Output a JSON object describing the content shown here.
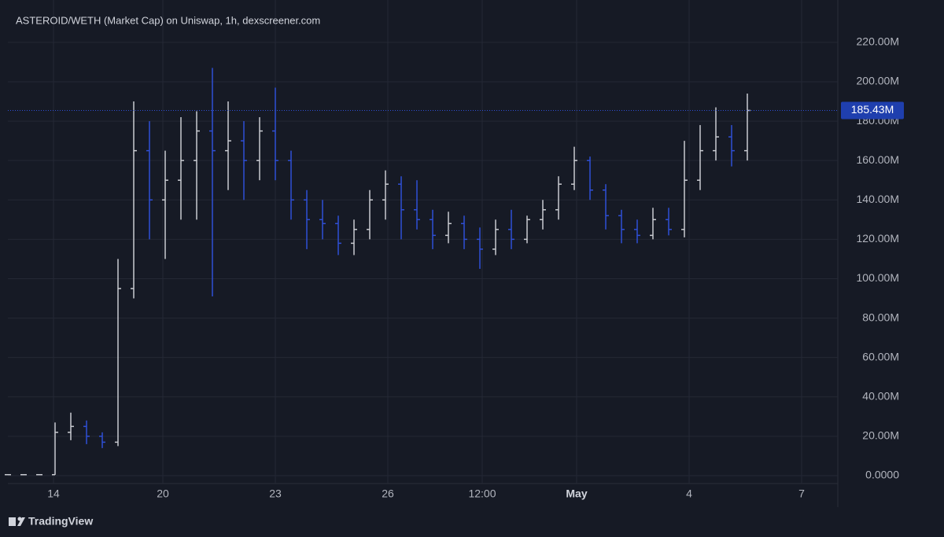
{
  "chart_data": {
    "type": "ohlc",
    "title": "ASTEROID/WETH (Market Cap) on Uniswap, 1h, dexscreener.com",
    "footer": "TradingView",
    "x": [
      0,
      2,
      4,
      6,
      8,
      10,
      12,
      14,
      16,
      18,
      20,
      22,
      24,
      26,
      28,
      30,
      32,
      34,
      36,
      38,
      40,
      42,
      44,
      46,
      48,
      50,
      52,
      54,
      56,
      58,
      60,
      62,
      64,
      66,
      68,
      70,
      72,
      74,
      76,
      78,
      80,
      82,
      84,
      86,
      88,
      90,
      92,
      94
    ],
    "open": [
      0.5,
      0.5,
      0.5,
      0.5,
      22,
      25,
      20,
      17,
      95,
      165,
      140,
      150,
      160,
      175,
      165,
      170,
      160,
      175,
      160,
      140,
      130,
      128,
      118,
      125,
      140,
      148,
      135,
      130,
      122,
      128,
      120,
      115,
      125,
      120,
      130,
      135,
      148,
      160,
      145,
      132,
      125,
      122,
      130,
      125,
      150,
      165,
      172,
      165
    ],
    "high": [
      0.6,
      0.6,
      0.6,
      27,
      32,
      28,
      22,
      110,
      190,
      180,
      165,
      182,
      185,
      207,
      190,
      180,
      182,
      197,
      165,
      145,
      140,
      132,
      130,
      145,
      155,
      152,
      150,
      135,
      134,
      132,
      126,
      130,
      135,
      132,
      140,
      152,
      167,
      162,
      148,
      135,
      130,
      136,
      136,
      170,
      178,
      187,
      178,
      194
    ],
    "low": [
      0.4,
      0.4,
      0.4,
      0.4,
      18,
      16,
      14,
      15,
      90,
      120,
      110,
      130,
      130,
      91,
      145,
      140,
      150,
      150,
      130,
      115,
      120,
      112,
      112,
      120,
      130,
      120,
      125,
      115,
      118,
      115,
      105,
      112,
      115,
      118,
      125,
      130,
      145,
      140,
      125,
      118,
      118,
      120,
      122,
      121,
      145,
      160,
      157,
      160
    ],
    "close": [
      0.5,
      0.5,
      0.5,
      22,
      25,
      20,
      17,
      95,
      165,
      140,
      150,
      160,
      175,
      165,
      170,
      160,
      175,
      160,
      140,
      130,
      128,
      118,
      125,
      140,
      148,
      135,
      130,
      122,
      128,
      120,
      115,
      125,
      120,
      130,
      135,
      148,
      160,
      145,
      132,
      125,
      122,
      130,
      125,
      150,
      165,
      172,
      165,
      185.43
    ],
    "up_color": "#c9cbd1",
    "down_color": "#2f4fd6",
    "last_price": {
      "value": 185.43,
      "label": "185.43M"
    },
    "xlim": [
      0,
      105.5
    ],
    "ylim": [
      -4,
      241.5
    ],
    "xticks": [
      {
        "value": 5.8,
        "label": "14"
      },
      {
        "value": 19.7,
        "label": "20"
      },
      {
        "value": 34,
        "label": "23"
      },
      {
        "value": 48.3,
        "label": "26"
      },
      {
        "value": 60.3,
        "label": "12:00"
      },
      {
        "value": 72.3,
        "label": "May"
      },
      {
        "value": 86.6,
        "label": "4"
      },
      {
        "value": 100.9,
        "label": "7"
      }
    ],
    "yticks": [
      {
        "value": 0,
        "label": "0.0000"
      },
      {
        "value": 20,
        "label": "20.00M"
      },
      {
        "value": 40,
        "label": "40.00M"
      },
      {
        "value": 60,
        "label": "60.00M"
      },
      {
        "value": 80,
        "label": "80.00M"
      },
      {
        "value": 100,
        "label": "100.00M"
      },
      {
        "value": 120,
        "label": "120.00M"
      },
      {
        "value": 140,
        "label": "140.00M"
      },
      {
        "value": 160,
        "label": "160.00M"
      },
      {
        "value": 180,
        "label": "180.00M"
      },
      {
        "value": 200,
        "label": "200.00M"
      },
      {
        "value": 220,
        "label": "220.00M"
      }
    ],
    "grid": true
  }
}
